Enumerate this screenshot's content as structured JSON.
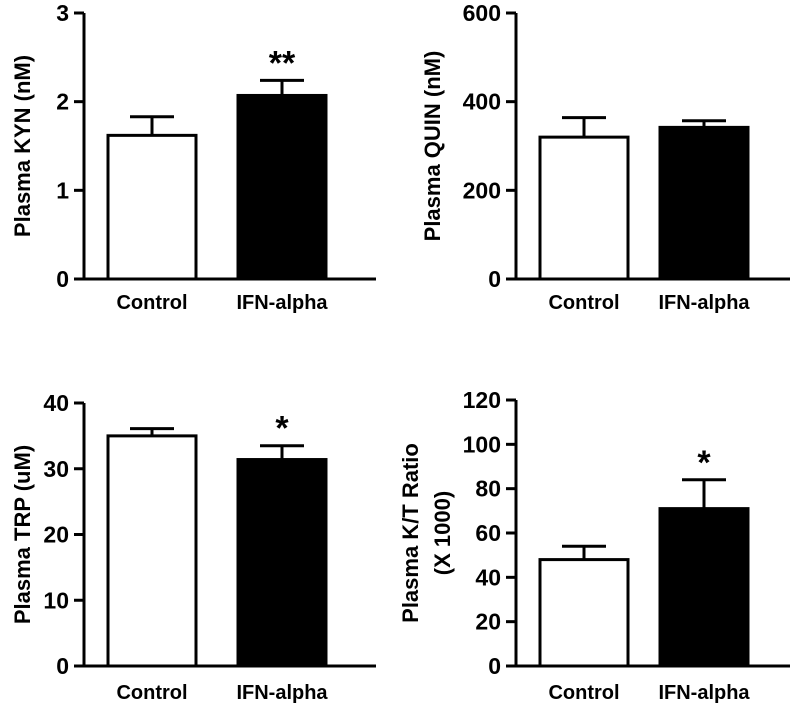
{
  "chart_data": [
    {
      "type": "bar",
      "categories": [
        "Control",
        "IFN-alpha"
      ],
      "values": [
        1.62,
        2.07
      ],
      "errors": [
        0.21,
        0.17
      ],
      "ylabel": [
        "Plasma KYN (nM)"
      ],
      "ylim": [
        0,
        3
      ],
      "yticks": [
        0,
        1,
        2,
        3
      ],
      "significance": [
        "",
        "**"
      ],
      "bar_colors": [
        "#ffffff",
        "#000000"
      ],
      "grid": false
    },
    {
      "type": "bar",
      "categories": [
        "Control",
        "IFN-alpha"
      ],
      "values": [
        320,
        342
      ],
      "errors": [
        44,
        15
      ],
      "ylabel": [
        "Plasma QUIN (nM)"
      ],
      "ylim": [
        0,
        600
      ],
      "yticks": [
        0,
        200,
        400,
        600
      ],
      "significance": [
        "",
        ""
      ],
      "bar_colors": [
        "#ffffff",
        "#000000"
      ],
      "grid": false
    },
    {
      "type": "bar",
      "categories": [
        "Control",
        "IFN-alpha"
      ],
      "values": [
        35,
        31.4
      ],
      "errors": [
        1.1,
        2.1
      ],
      "ylabel": [
        "Plasma TRP (uM)"
      ],
      "ylim": [
        0,
        40
      ],
      "yticks": [
        0,
        10,
        20,
        30,
        40
      ],
      "significance": [
        "",
        "*"
      ],
      "bar_colors": [
        "#ffffff",
        "#000000"
      ],
      "grid": false
    },
    {
      "type": "bar",
      "categories": [
        "Control",
        "IFN-alpha"
      ],
      "values": [
        48,
        71
      ],
      "errors": [
        6,
        13
      ],
      "ylabel": [
        "Plasma K/T Ratio",
        "(X 1000)"
      ],
      "ylim": [
        0,
        120
      ],
      "yticks": [
        0,
        20,
        40,
        60,
        80,
        100,
        120
      ],
      "significance": [
        "",
        "*"
      ],
      "bar_colors": [
        "#ffffff",
        "#000000"
      ],
      "grid": false
    }
  ]
}
